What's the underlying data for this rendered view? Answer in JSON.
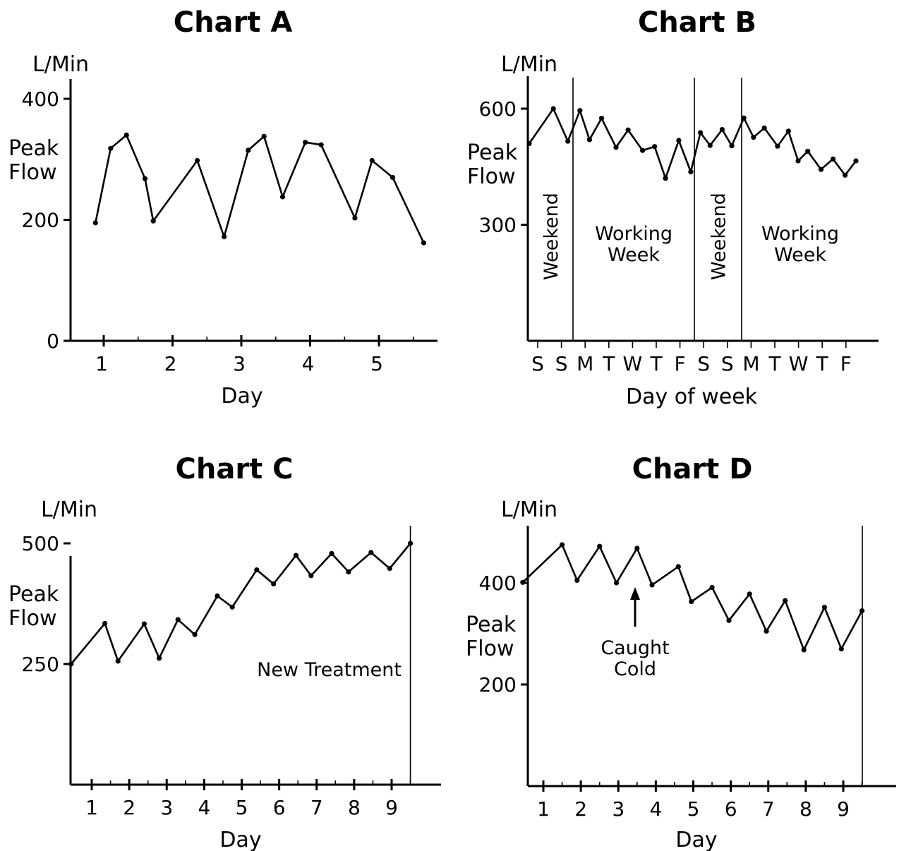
{
  "chart_data": [
    {
      "id": "A",
      "type": "line",
      "title": "Chart A",
      "unit_label": "L/Min",
      "ylabel": "Peak Flow",
      "xlabel": "Day",
      "ylim": [
        0,
        400
      ],
      "xlim": [
        0.5,
        5.85
      ],
      "yticks": [
        0,
        200,
        400
      ],
      "xticks": [
        1,
        2,
        3,
        4,
        5
      ],
      "grid": false,
      "series": [
        {
          "points": [
            [
              0.88,
              195
            ],
            [
              1.1,
              318
            ],
            [
              1.33,
              340
            ],
            [
              1.6,
              268
            ],
            [
              1.72,
              198
            ],
            [
              2.36,
              298
            ],
            [
              2.75,
              172
            ],
            [
              3.1,
              315
            ],
            [
              3.33,
              338
            ],
            [
              3.6,
              238
            ],
            [
              3.93,
              328
            ],
            [
              4.16,
              324
            ],
            [
              4.65,
              203
            ],
            [
              4.9,
              298
            ],
            [
              5.2,
              270
            ],
            [
              5.65,
              162
            ]
          ]
        }
      ]
    },
    {
      "id": "B",
      "type": "line",
      "title": "Chart B",
      "unit_label": "L/Min",
      "ylabel": "Peak Flow",
      "xlabel": "Day of week",
      "ylim": [
        0,
        680
      ],
      "xlim": [
        0,
        18
      ],
      "yticks": [
        300,
        600
      ],
      "xtick_labels": [
        "S",
        "S",
        "M",
        "T",
        "W",
        "T",
        "F",
        "S",
        "S",
        "M",
        "T",
        "W",
        "T",
        "F"
      ],
      "grid": false,
      "regions": [
        {
          "label": "Weekend",
          "orientation": "vertical",
          "from": 0,
          "to": 2
        },
        {
          "label": "Working\nWeek",
          "orientation": "horizontal",
          "from": 2,
          "to": 7
        },
        {
          "label": "Weekend",
          "orientation": "vertical",
          "from": 7,
          "to": 9
        },
        {
          "label": "Working\nWeek",
          "orientation": "horizontal",
          "from": 9,
          "to": 14
        }
      ],
      "series": [
        {
          "points": [
            [
              0,
              510
            ],
            [
              1,
              600
            ],
            [
              1.6,
              516
            ],
            [
              2.1,
              595
            ],
            [
              2.5,
              520
            ],
            [
              3,
              575
            ],
            [
              3.6,
              500
            ],
            [
              4.1,
              545
            ],
            [
              4.7,
              492
            ],
            [
              5.2,
              502
            ],
            [
              5.65,
              420
            ],
            [
              6.2,
              518
            ],
            [
              6.7,
              437
            ],
            [
              7.1,
              538
            ],
            [
              7.5,
              505
            ],
            [
              8,
              546
            ],
            [
              8.4,
              504
            ],
            [
              8.9,
              576
            ],
            [
              9.3,
              526
            ],
            [
              9.75,
              550
            ],
            [
              10.3,
              503
            ],
            [
              10.75,
              542
            ],
            [
              11.15,
              465
            ],
            [
              11.55,
              490
            ],
            [
              12.1,
              443
            ],
            [
              12.6,
              470
            ],
            [
              13.1,
              428
            ],
            [
              13.55,
              465
            ]
          ]
        }
      ]
    },
    {
      "id": "C",
      "type": "line",
      "title": "Chart C",
      "unit_label": "L/Min",
      "ylabel": "Peak Flow",
      "xlabel": "Day",
      "ylim": [
        0,
        500
      ],
      "xlim": [
        0.45,
        9.8
      ],
      "yticks": [
        250,
        500
      ],
      "xticks": [
        1,
        2,
        3,
        4,
        5,
        6,
        7,
        8,
        9
      ],
      "grid": false,
      "annotations": [
        {
          "text": "New Treatment",
          "marker_x": 9.5
        }
      ],
      "series": [
        {
          "points": [
            [
              0.45,
              250
            ],
            [
              1.35,
              334
            ],
            [
              1.7,
              256
            ],
            [
              2.4,
              333
            ],
            [
              2.8,
              262
            ],
            [
              3.3,
              342
            ],
            [
              3.75,
              311
            ],
            [
              4.35,
              391
            ],
            [
              4.75,
              368
            ],
            [
              5.4,
              445
            ],
            [
              5.85,
              416
            ],
            [
              6.45,
              475
            ],
            [
              6.85,
              433
            ],
            [
              7.4,
              479
            ],
            [
              7.85,
              441
            ],
            [
              8.45,
              481
            ],
            [
              8.95,
              448
            ],
            [
              9.5,
              500
            ]
          ]
        }
      ]
    },
    {
      "id": "D",
      "type": "line",
      "title": "Chart D",
      "unit_label": "L/Min",
      "ylabel": "Peak Flow",
      "xlabel": "Day",
      "ylim": [
        0,
        520
      ],
      "xlim": [
        0.45,
        10.0
      ],
      "yticks": [
        200,
        400
      ],
      "xticks": [
        1,
        2,
        3,
        4,
        5,
        6,
        7,
        8,
        9
      ],
      "grid": false,
      "annotations": [
        {
          "text": "Caught\nCold",
          "marker_x": 3.45
        }
      ],
      "series": [
        {
          "points": [
            [
              0.45,
              401
            ],
            [
              1.5,
              475
            ],
            [
              1.9,
              405
            ],
            [
              2.5,
              472
            ],
            [
              2.95,
              400
            ],
            [
              3.5,
              468
            ],
            [
              3.9,
              396
            ],
            [
              4.6,
              432
            ],
            [
              4.95,
              363
            ],
            [
              5.5,
              391
            ],
            [
              5.95,
              326
            ],
            [
              6.5,
              378
            ],
            [
              6.95,
              305
            ],
            [
              7.45,
              365
            ],
            [
              7.95,
              268
            ],
            [
              8.5,
              352
            ],
            [
              8.95,
              270
            ],
            [
              9.5,
              345
            ]
          ]
        }
      ]
    }
  ]
}
